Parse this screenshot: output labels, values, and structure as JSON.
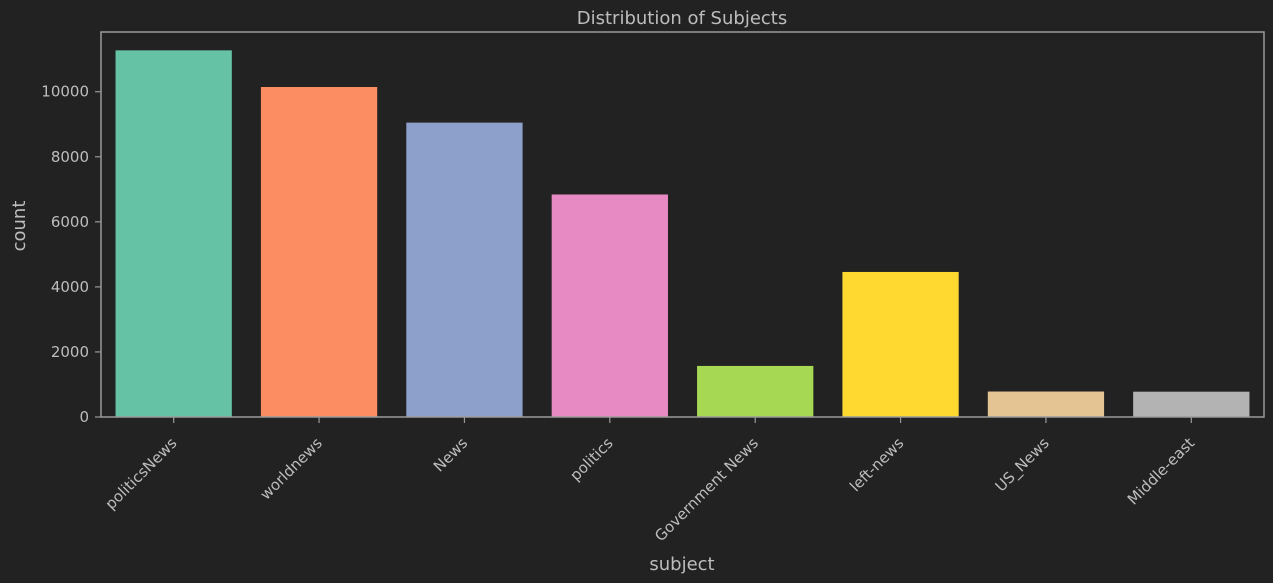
{
  "chart_data": {
    "type": "bar",
    "title": "Distribution of Subjects",
    "xlabel": "subject",
    "ylabel": "count",
    "categories": [
      "politicsNews",
      "worldnews",
      "News",
      "politics",
      "Government News",
      "left-news",
      "US_News",
      "Middle-east"
    ],
    "values": [
      11272,
      10145,
      9050,
      6841,
      1570,
      4459,
      783,
      778
    ],
    "colors": [
      "#66c2a5",
      "#fc8d62",
      "#8da0cb",
      "#e78ac3",
      "#a6d854",
      "#ffd92f",
      "#e5c494",
      "#b3b3b3"
    ],
    "ylim": [
      0,
      11836
    ],
    "yticks": [
      0,
      2000,
      4000,
      6000,
      8000,
      10000
    ],
    "grid": false,
    "background": "#222222",
    "text_color": "#bdbdbd",
    "spine_color": "#9a9a9a"
  }
}
